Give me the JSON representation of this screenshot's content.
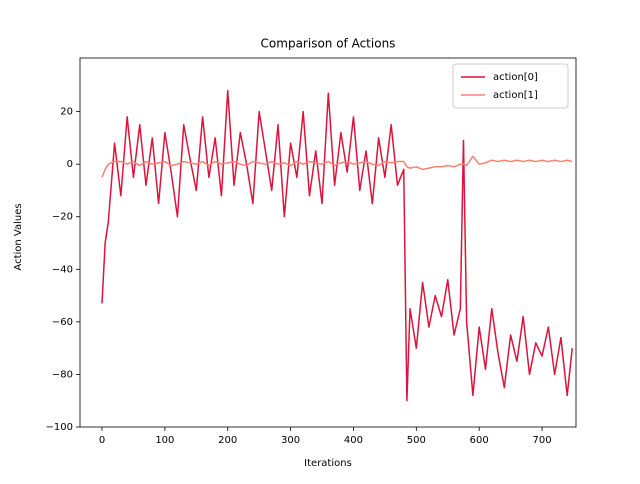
{
  "chart_data": {
    "type": "line",
    "title": "Comparison of Actions",
    "x_label": "Iterations",
    "y_label": "Action Values",
    "x": [
      0,
      5,
      10,
      20,
      30,
      40,
      50,
      60,
      70,
      80,
      90,
      100,
      110,
      120,
      130,
      140,
      150,
      160,
      170,
      180,
      190,
      200,
      210,
      220,
      230,
      240,
      250,
      260,
      270,
      280,
      290,
      300,
      310,
      320,
      330,
      340,
      350,
      360,
      370,
      380,
      390,
      400,
      410,
      420,
      430,
      440,
      450,
      460,
      470,
      480,
      485,
      490,
      500,
      510,
      520,
      530,
      540,
      550,
      560,
      570,
      575,
      580,
      590,
      600,
      610,
      620,
      630,
      640,
      650,
      660,
      670,
      680,
      690,
      700,
      710,
      720,
      730,
      740,
      748
    ],
    "series": [
      {
        "name": "action[0]",
        "color": "#dc143c",
        "values": [
          -53,
          -30,
          -22,
          8,
          -12,
          18,
          -5,
          15,
          -8,
          10,
          -15,
          12,
          -3,
          -20,
          15,
          2,
          -10,
          18,
          -5,
          10,
          -12,
          28,
          -8,
          12,
          0,
          -15,
          20,
          5,
          -10,
          15,
          -20,
          8,
          -5,
          20,
          -12,
          5,
          -15,
          27,
          -8,
          12,
          -3,
          18,
          -10,
          5,
          -15,
          10,
          -5,
          15,
          -8,
          -2,
          -90,
          -55,
          -70,
          -45,
          -62,
          -50,
          -58,
          -44,
          -65,
          -55,
          9,
          -60,
          -88,
          -62,
          -78,
          -55,
          -72,
          -85,
          -65,
          -75,
          -58,
          -80,
          -68,
          -73,
          -62,
          -80,
          -66,
          -88,
          -70
        ]
      },
      {
        "name": "action[1]",
        "color": "#fa8072",
        "values": [
          -5,
          -2,
          0,
          1,
          1,
          0,
          1,
          -0.5,
          1,
          0,
          0.5,
          1,
          -0.5,
          0,
          1,
          0.5,
          0,
          1,
          -0.5,
          1,
          0,
          0.5,
          1,
          0,
          -0.5,
          1,
          0.5,
          0,
          1,
          0,
          0.5,
          -0.5,
          1,
          0,
          1,
          0.5,
          0,
          1,
          -0.5,
          0.5,
          1,
          0,
          0.5,
          1,
          0,
          -0.5,
          1,
          0.5,
          1,
          1,
          -1,
          -1.5,
          -1,
          -2,
          -1.5,
          -1,
          -1,
          -0.5,
          -1,
          0,
          0,
          -0.5,
          3,
          0,
          0.5,
          1.5,
          1,
          1.5,
          1,
          1.5,
          1,
          1.5,
          1,
          1.5,
          1,
          1.5,
          1,
          1.5,
          1
        ]
      }
    ],
    "xlim": [
      -35,
      754
    ],
    "ylim": [
      -100,
      40.4
    ],
    "xticks": [
      0,
      100,
      200,
      300,
      400,
      500,
      600,
      700
    ],
    "yticks": [
      {
        "value": -100,
        "label": "−100"
      },
      {
        "value": -80,
        "label": "−80"
      },
      {
        "value": -60,
        "label": "−60"
      },
      {
        "value": -40,
        "label": "−40"
      },
      {
        "value": -20,
        "label": "−20"
      },
      0,
      20
    ],
    "legend": "upper right",
    "grid": false
  }
}
